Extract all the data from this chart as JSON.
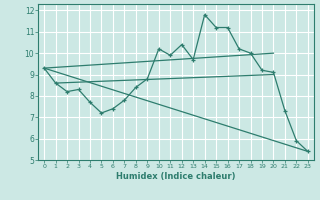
{
  "xlabel": "Humidex (Indice chaleur)",
  "ylabel": "",
  "xlim": [
    -0.5,
    23.5
  ],
  "ylim": [
    5,
    12.3
  ],
  "yticks": [
    5,
    6,
    7,
    8,
    9,
    10,
    11,
    12
  ],
  "xticks": [
    0,
    1,
    2,
    3,
    4,
    5,
    6,
    7,
    8,
    9,
    10,
    11,
    12,
    13,
    14,
    15,
    16,
    17,
    18,
    19,
    20,
    21,
    22,
    23
  ],
  "bg_color": "#cce8e4",
  "line_color": "#2e7d6e",
  "grid_color": "#ffffff",
  "line1_x": [
    0,
    1,
    2,
    3,
    4,
    5,
    6,
    7,
    8,
    9,
    10,
    11,
    12,
    13,
    14,
    15,
    16,
    17,
    18,
    19,
    20,
    21,
    22,
    23
  ],
  "line1_y": [
    9.3,
    8.6,
    8.2,
    8.3,
    7.7,
    7.2,
    7.4,
    7.8,
    8.4,
    8.8,
    10.2,
    9.9,
    10.4,
    9.7,
    11.8,
    11.2,
    11.2,
    10.2,
    10.0,
    9.2,
    9.1,
    7.3,
    5.9,
    5.4
  ],
  "line2_x": [
    0,
    20
  ],
  "line2_y": [
    9.3,
    10.0
  ],
  "line3_x": [
    0,
    23
  ],
  "line3_y": [
    9.3,
    5.4
  ],
  "line4_x": [
    1,
    20
  ],
  "line4_y": [
    8.6,
    9.0
  ]
}
